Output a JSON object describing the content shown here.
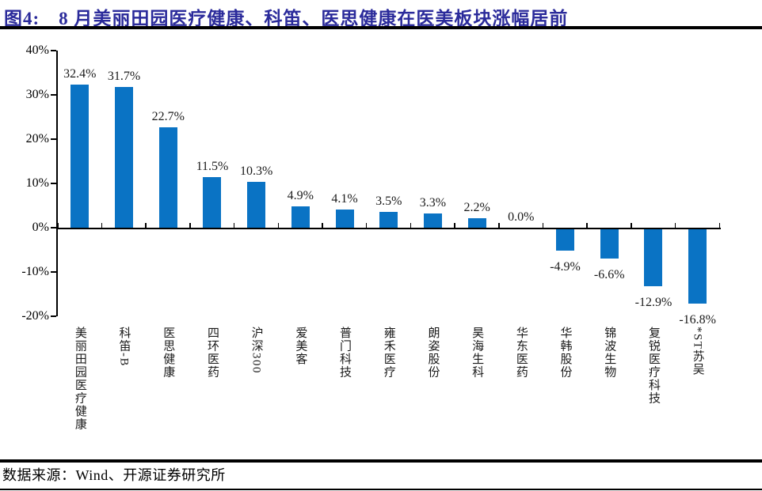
{
  "header": {
    "title": "图4:　8 月美丽田园医疗健康、科笛、医思健康在医美板块涨幅居前"
  },
  "footer": {
    "source": "数据来源：Wind、开源证券研究所"
  },
  "colors": {
    "bar_blue": "#0A73C4",
    "title_navy": "#2B2B9B",
    "rule_black": "#000000"
  },
  "chart_data": {
    "type": "bar",
    "title": "8 月美丽田园医疗健康、科笛、医思健康在医美板块涨幅居前",
    "xlabel": "",
    "ylabel": "",
    "categories": [
      "美丽田园医疗健康",
      "科笛-B",
      "医思健康",
      "四环医药",
      "沪深300",
      "爱美客",
      "普门科技",
      "雍禾医疗",
      "朗姿股份",
      "昊海生科",
      "华东医药",
      "华韩股份",
      "锦波生物",
      "复锐医疗科技",
      "*ST苏吴"
    ],
    "values": [
      32.4,
      31.7,
      22.7,
      11.5,
      10.3,
      4.9,
      4.1,
      3.5,
      3.3,
      2.2,
      0.0,
      -4.9,
      -6.6,
      -12.9,
      -16.8
    ],
    "value_labels": [
      "32.4%",
      "31.7%",
      "22.7%",
      "11.5%",
      "10.3%",
      "4.9%",
      "4.1%",
      "3.5%",
      "3.3%",
      "2.2%",
      "0.0%",
      "-4.9%",
      "-6.6%",
      "-12.9%",
      "-16.8%"
    ],
    "ylim": [
      -20,
      40
    ],
    "yticks": [
      40,
      30,
      20,
      10,
      0,
      -10,
      -20
    ],
    "ytick_labels": [
      "40%",
      "30%",
      "20%",
      "10%",
      "0%",
      "-10%",
      "-20%"
    ],
    "grid": false,
    "legend": false,
    "bar_color": "#0A73C4"
  }
}
